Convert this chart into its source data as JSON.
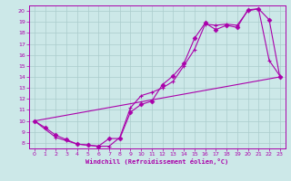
{
  "xlabel": "Windchill (Refroidissement éolien,°C)",
  "bg_color": "#cce8e8",
  "grid_color": "#aacccc",
  "line_color": "#aa00aa",
  "xlim": [
    -0.5,
    23.5
  ],
  "ylim": [
    7.5,
    20.5
  ],
  "xticks": [
    0,
    1,
    2,
    3,
    4,
    5,
    6,
    7,
    8,
    9,
    10,
    11,
    12,
    13,
    14,
    15,
    16,
    17,
    18,
    19,
    20,
    21,
    22,
    23
  ],
  "yticks": [
    8,
    9,
    10,
    11,
    12,
    13,
    14,
    15,
    16,
    17,
    18,
    19,
    20
  ],
  "line1_x": [
    0,
    1,
    2,
    3,
    4,
    5,
    6,
    7,
    8,
    9,
    10,
    11,
    12,
    13,
    14,
    15,
    16,
    17,
    18,
    19,
    20,
    21,
    22,
    23
  ],
  "line1_y": [
    10.0,
    9.4,
    8.7,
    8.3,
    7.9,
    7.8,
    7.7,
    8.4,
    8.4,
    10.8,
    11.5,
    11.8,
    13.3,
    14.1,
    15.2,
    17.5,
    18.9,
    18.3,
    18.7,
    18.5,
    20.1,
    20.2,
    19.2,
    14.0
  ],
  "line2_x": [
    0,
    2,
    3,
    4,
    5,
    6,
    7,
    8,
    9,
    10,
    11,
    12,
    13,
    14,
    15,
    16,
    17,
    18,
    19,
    20,
    21,
    22,
    23
  ],
  "line2_y": [
    10.0,
    8.5,
    8.2,
    7.9,
    7.8,
    7.7,
    7.7,
    8.5,
    11.2,
    12.3,
    12.6,
    13.0,
    13.6,
    15.0,
    16.5,
    18.8,
    18.7,
    18.8,
    18.7,
    20.0,
    20.2,
    15.5,
    14.1
  ],
  "line3_x": [
    0,
    23
  ],
  "line3_y": [
    10.0,
    14.0
  ]
}
